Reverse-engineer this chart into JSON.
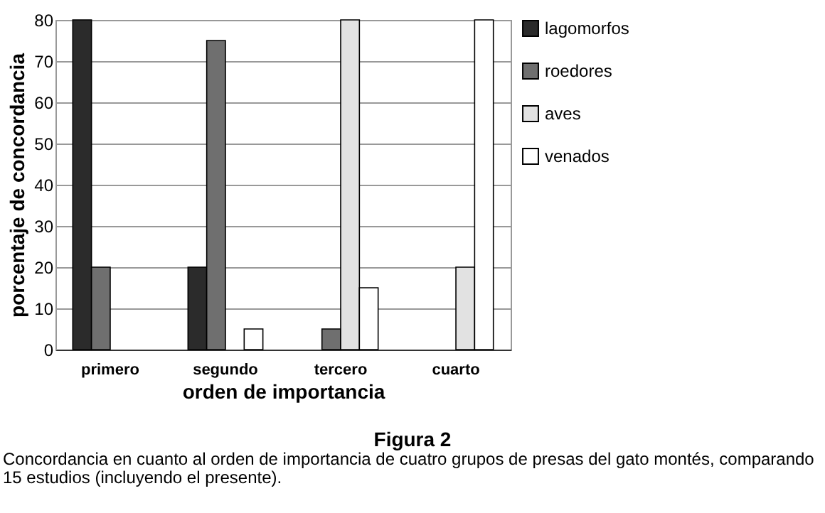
{
  "chart_data": {
    "type": "bar",
    "title": "Figura 2",
    "annotations": [
      "Concordancia en cuanto al orden de importancia de cuatro grupos de presas del gato montés, comparando 15 estudios (incluyendo el presente)."
    ],
    "xlabel": "orden de importancia",
    "ylabel": "porcentaje de concordancia",
    "categories": [
      "primero",
      "segundo",
      "tercero",
      "cuarto"
    ],
    "series": [
      {
        "name": "lagomorfos",
        "color": "#2b2b2b",
        "values": [
          80,
          20,
          null,
          null
        ]
      },
      {
        "name": "roedores",
        "color": "#6f6f6f",
        "values": [
          20,
          75,
          5,
          null
        ]
      },
      {
        "name": "aves",
        "color": "#e2e2e2",
        "values": [
          null,
          null,
          80,
          20
        ]
      },
      {
        "name": "venados",
        "color": "#ffffff",
        "values": [
          null,
          5,
          15,
          80
        ]
      }
    ],
    "ylim": [
      0,
      80
    ],
    "yticks": [
      0,
      10,
      20,
      30,
      40,
      50,
      60,
      70,
      80
    ],
    "grid": "y",
    "legend": "right"
  }
}
